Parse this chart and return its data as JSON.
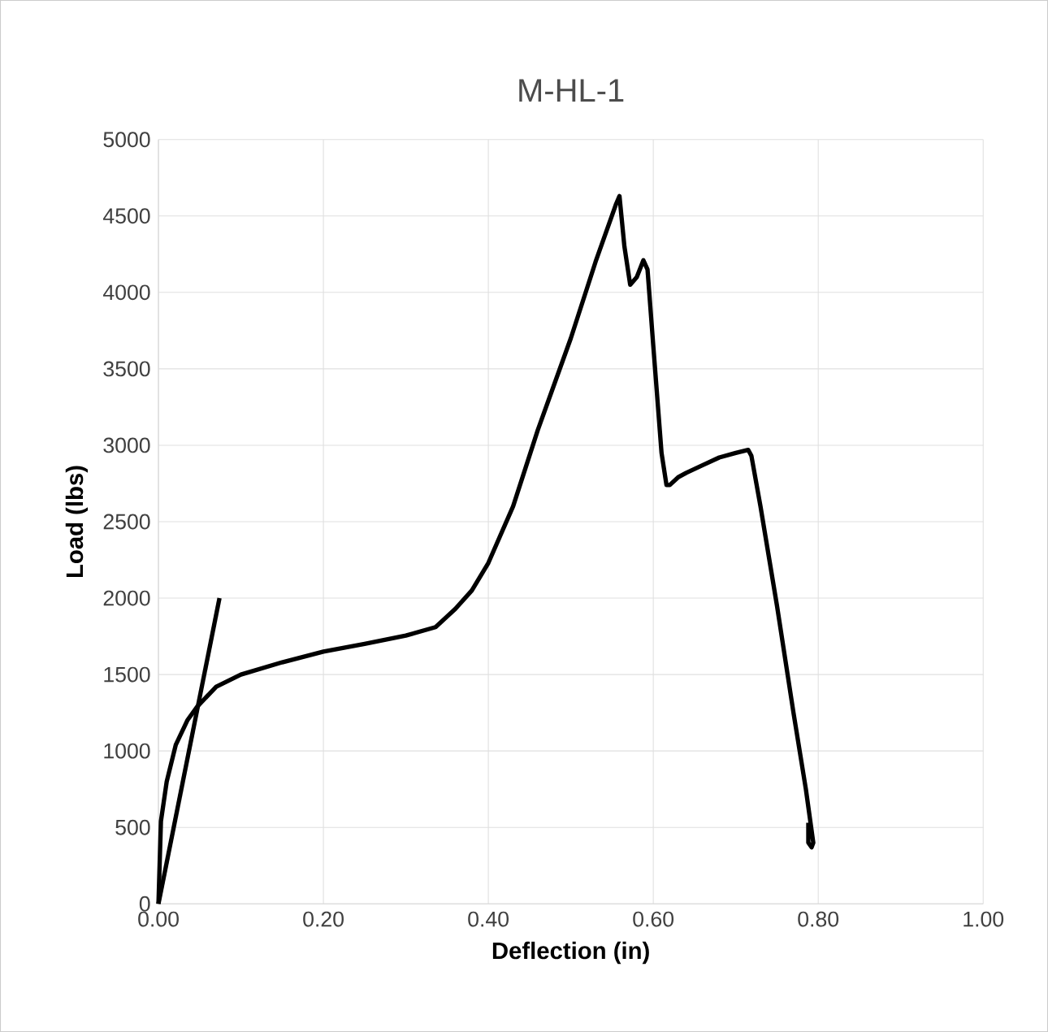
{
  "chart_data": {
    "type": "line",
    "title": "M-HL-1",
    "xlabel": "Deflection (in)",
    "ylabel": "Load (lbs)",
    "xlim": [
      0,
      1
    ],
    "ylim": [
      0,
      5000
    ],
    "xticks": [
      {
        "value": 0,
        "label": "0.00"
      },
      {
        "value": 0.2,
        "label": "0.20"
      },
      {
        "value": 0.4,
        "label": "0.40"
      },
      {
        "value": 0.6,
        "label": "0.60"
      },
      {
        "value": 0.8,
        "label": "0.80"
      },
      {
        "value": 1,
        "label": "1.00"
      }
    ],
    "yticks": [
      0,
      500,
      1000,
      1500,
      2000,
      2500,
      3000,
      3500,
      4000,
      4500,
      5000
    ],
    "grid": true,
    "marker": "none",
    "line_style": "solid",
    "series": [
      {
        "color": "#000000",
        "x": [
          0,
          0.003,
          0.01,
          0.021,
          0.035,
          0.047,
          0.07,
          0.1,
          0.15,
          0.2,
          0.25,
          0.3,
          0.336,
          0.36,
          0.38,
          0.4,
          0.43,
          0.46,
          0.5,
          0.53,
          0.555,
          0.559,
          0.565,
          0.572,
          0.58,
          0.588,
          0.593,
          0.6,
          0.61,
          0.616,
          0.62,
          0.63,
          0.64,
          0.66,
          0.68,
          0.7,
          0.715,
          0.719,
          0.73,
          0.75,
          0.77,
          0.785,
          0.794,
          0.792,
          0.788,
          0.788
        ],
        "values": [
          0,
          540,
          800,
          1040,
          1200,
          1290,
          1420,
          1500,
          1580,
          1650,
          1700,
          1755,
          1810,
          1930,
          2050,
          2230,
          2600,
          3100,
          3700,
          4200,
          4580,
          4630,
          4300,
          4050,
          4100,
          4210,
          4150,
          3650,
          2950,
          2740,
          2740,
          2790,
          2820,
          2870,
          2920,
          2950,
          2970,
          2930,
          2600,
          1950,
          1250,
          750,
          400,
          370,
          400,
          530
        ]
      },
      {
        "color": "#000000",
        "x": [
          0,
          0.074
        ],
        "values": [
          0,
          2000
        ]
      }
    ]
  }
}
